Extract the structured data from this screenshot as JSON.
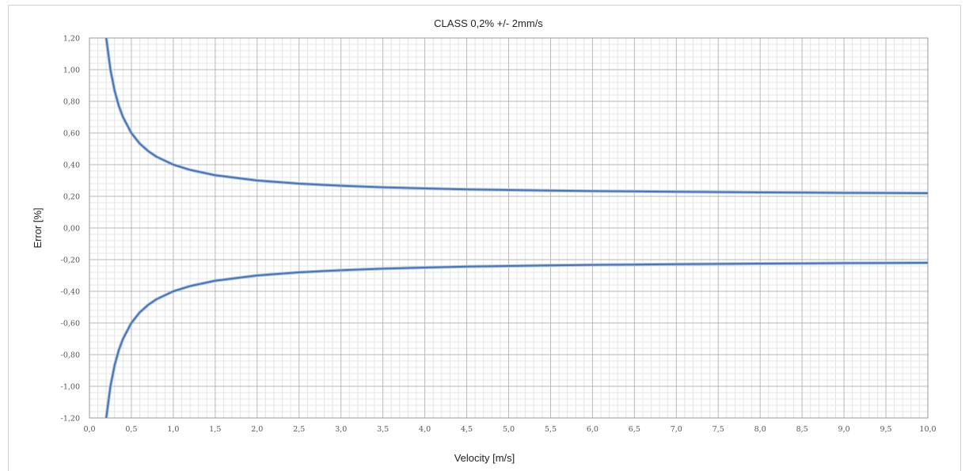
{
  "chart_data": {
    "type": "line",
    "title": "CLASS 0,2% +/- 2mm/s",
    "xlabel": "Velocity [m/s]",
    "ylabel": "Error [%]",
    "xlim": [
      0,
      10
    ],
    "ylim": [
      -1.2,
      1.2
    ],
    "x_ticks": [
      "0,0",
      "0,5",
      "1,0",
      "1,5",
      "2,0",
      "2,5",
      "3,0",
      "3,5",
      "4,0",
      "4,5",
      "5,0",
      "5,5",
      "6,0",
      "6,5",
      "7,0",
      "7,5",
      "8,0",
      "8,5",
      "9,0",
      "9,5",
      "10,0"
    ],
    "y_ticks": [
      "1,20",
      "1,00",
      "0,80",
      "0,60",
      "0,40",
      "0,20",
      "0,00",
      "-0,20",
      "-0,40",
      "-0,60",
      "-0,80",
      "-1,00",
      "-1,20"
    ],
    "grid": true,
    "line_color": "#4a74b4",
    "series": [
      {
        "x": [
          0.2,
          0.25,
          0.3,
          0.35,
          0.4,
          0.5,
          0.6,
          0.7,
          0.8,
          1.0,
          1.2,
          1.5,
          2.0,
          2.5,
          3.0,
          3.5,
          4.0,
          4.5,
          5.0,
          5.5,
          6.0,
          6.5,
          7.0,
          7.5,
          8.0,
          8.5,
          9.0,
          9.5,
          10.0
        ],
        "values": [
          1.2,
          1.0,
          0.867,
          0.771,
          0.7,
          0.6,
          0.533,
          0.486,
          0.45,
          0.4,
          0.367,
          0.333,
          0.3,
          0.28,
          0.267,
          0.257,
          0.25,
          0.244,
          0.24,
          0.236,
          0.233,
          0.231,
          0.229,
          0.227,
          0.225,
          0.224,
          0.222,
          0.221,
          0.22
        ]
      },
      {
        "x": [
          0.2,
          0.25,
          0.3,
          0.35,
          0.4,
          0.5,
          0.6,
          0.7,
          0.8,
          1.0,
          1.2,
          1.5,
          2.0,
          2.5,
          3.0,
          3.5,
          4.0,
          4.5,
          5.0,
          5.5,
          6.0,
          6.5,
          7.0,
          7.5,
          8.0,
          8.5,
          9.0,
          9.5,
          10.0
        ],
        "values": [
          -1.2,
          -1.0,
          -0.867,
          -0.771,
          -0.7,
          -0.6,
          -0.533,
          -0.486,
          -0.45,
          -0.4,
          -0.367,
          -0.333,
          -0.3,
          -0.28,
          -0.267,
          -0.257,
          -0.25,
          -0.244,
          -0.24,
          -0.236,
          -0.233,
          -0.231,
          -0.229,
          -0.227,
          -0.225,
          -0.224,
          -0.222,
          -0.221,
          -0.22
        ]
      }
    ]
  }
}
